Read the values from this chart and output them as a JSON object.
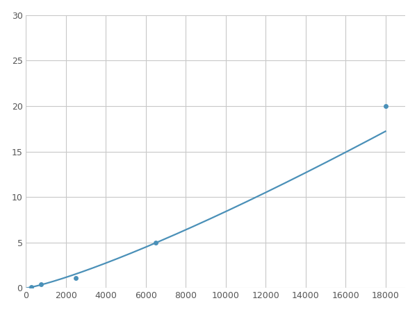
{
  "x_points": [
    250,
    750,
    2500,
    6500,
    18000
  ],
  "y_points": [
    0.1,
    0.4,
    1.1,
    5.0,
    20.0
  ],
  "line_color": "#4a90b8",
  "marker_color": "#4a90b8",
  "marker_size": 5,
  "linewidth": 1.6,
  "xlim": [
    0,
    19000
  ],
  "ylim": [
    0,
    30
  ],
  "xticks": [
    0,
    2000,
    4000,
    6000,
    8000,
    10000,
    12000,
    14000,
    16000,
    18000
  ],
  "yticks": [
    0,
    5,
    10,
    15,
    20,
    25,
    30
  ],
  "grid_color": "#c8c8c8",
  "background_color": "#ffffff",
  "figure_facecolor": "#ffffff"
}
